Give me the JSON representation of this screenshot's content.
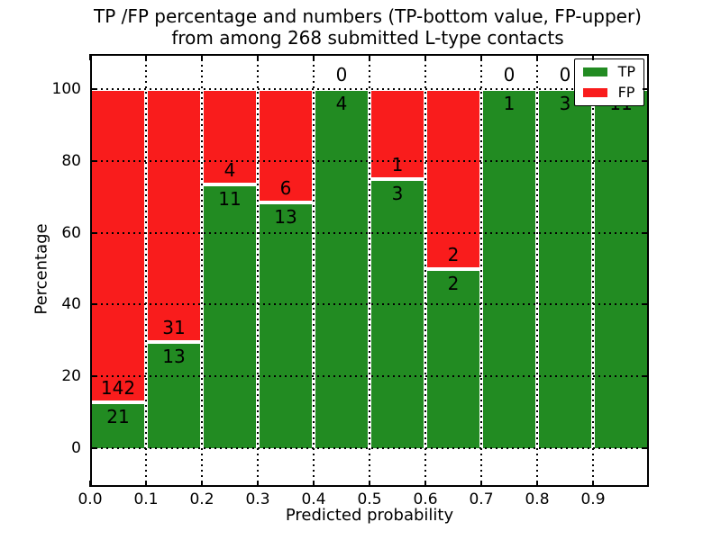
{
  "chart_data": {
    "type": "bar",
    "stacked": true,
    "title_line1": "TP /FP percentage and numbers (TP-bottom value, FP-upper)",
    "title_line2": "from among 268 submitted L-type contacts",
    "xlabel": "Predicted probability",
    "ylabel": "Percentage",
    "bin_edges": [
      0.0,
      0.1,
      0.2,
      0.3,
      0.4,
      0.5,
      0.6,
      0.7,
      0.8,
      0.9,
      1.0
    ],
    "xtick_labels": [
      "0.0",
      "0.1",
      "0.2",
      "0.3",
      "0.4",
      "0.5",
      "0.6",
      "0.7",
      "0.8",
      "0.9"
    ],
    "ytick_labels": [
      "0",
      "20",
      "40",
      "60",
      "80",
      "100"
    ],
    "ylim": [
      -10.9,
      109.8
    ],
    "grid": true,
    "series": [
      {
        "name": "TP",
        "color": "#228b22",
        "values": [
          21,
          13,
          11,
          13,
          4,
          3,
          2,
          1,
          3,
          11
        ]
      },
      {
        "name": "FP",
        "color": "#f91c1c",
        "values": [
          142,
          31,
          4,
          6,
          0,
          1,
          2,
          0,
          0,
          0
        ]
      }
    ],
    "tp_percentages": [
      12.9,
      29.5,
      73.3,
      68.4,
      100.0,
      75.0,
      50.0,
      100.0,
      100.0,
      100.0
    ],
    "legend": {
      "position": "upper right",
      "entries": [
        {
          "label": "TP",
          "color": "#228b22"
        },
        {
          "label": "FP",
          "color": "#f91c1c"
        }
      ]
    }
  }
}
